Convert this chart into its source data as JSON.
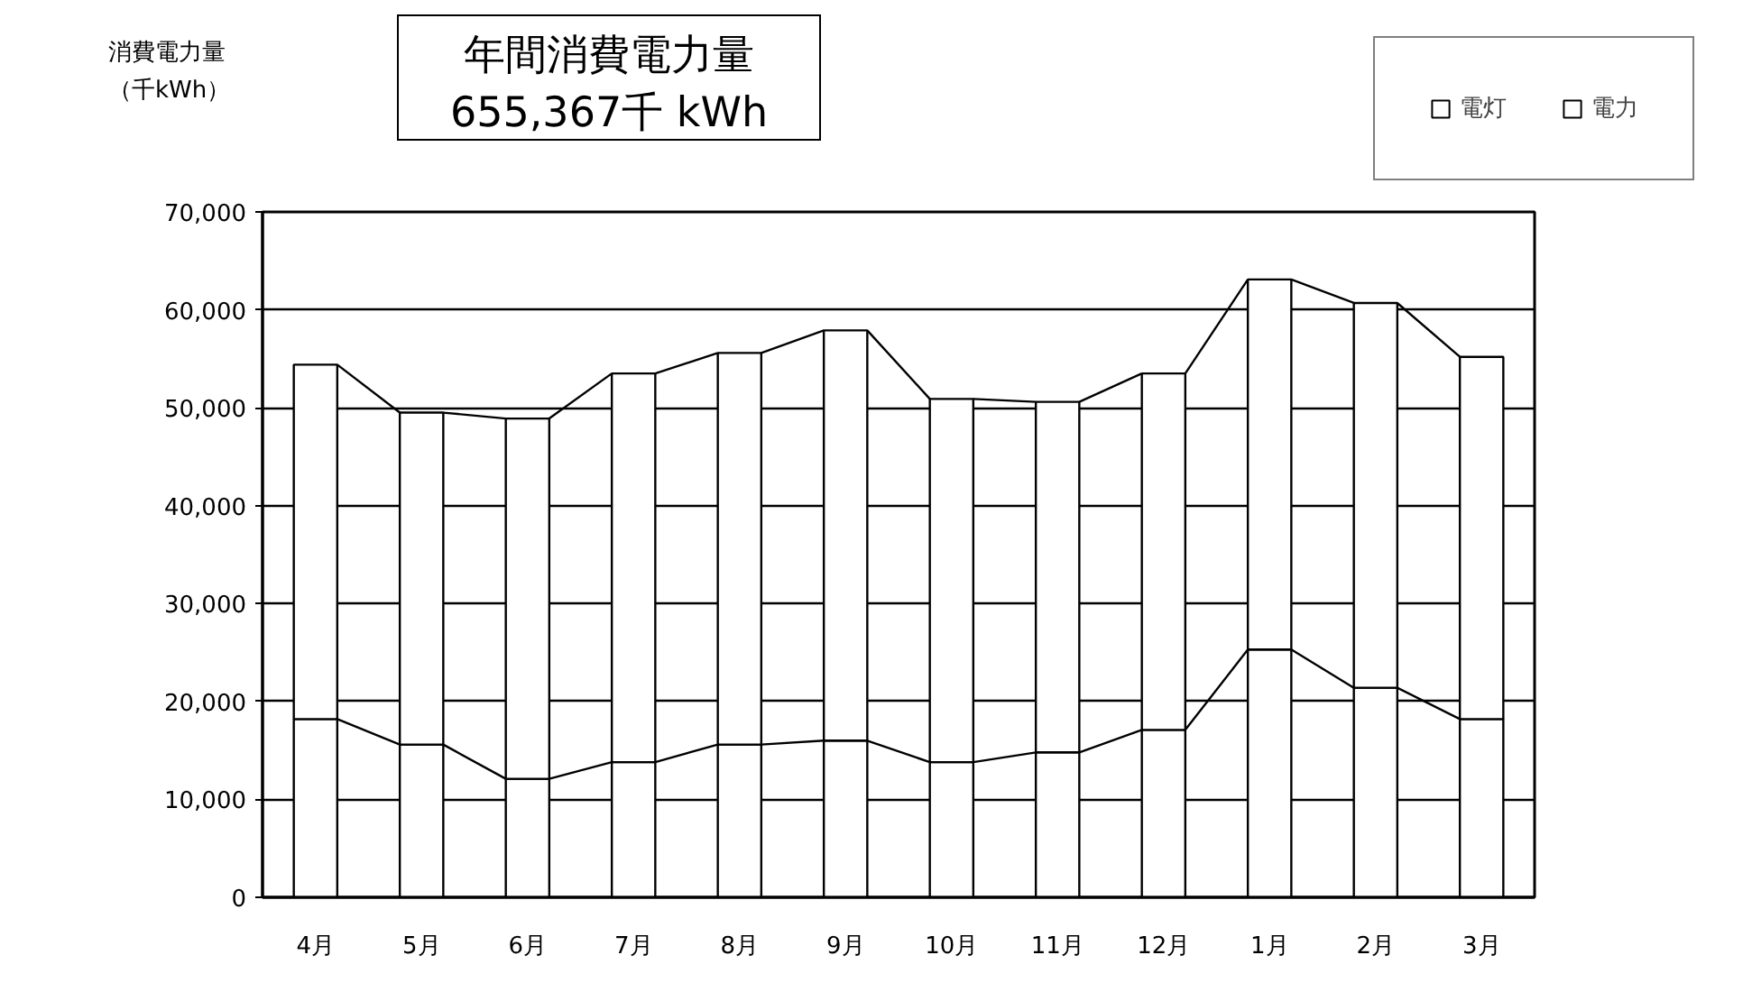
{
  "chart_data": {
    "type": "bar",
    "stacked": true,
    "title": "年間消費電力量",
    "subtitle": "655,367千 kWh",
    "annotations": [
      "消費電力量",
      "（千kWh）"
    ],
    "categories": [
      "4月",
      "5月",
      "6月",
      "7月",
      "8月",
      "9月",
      "10月",
      "11月",
      "12月",
      "1月",
      "2月",
      "3月"
    ],
    "series": [
      {
        "name": "電灯",
        "color": "#ffffff",
        "values": [
          18200,
          15600,
          12100,
          13800,
          15600,
          16000,
          13800,
          14800,
          17100,
          25300,
          21400,
          18200
        ]
      },
      {
        "name": "電力",
        "color": "#ffffff",
        "values": [
          36200,
          33900,
          36800,
          39700,
          40000,
          41900,
          37100,
          35800,
          36400,
          37800,
          39300,
          37000
        ]
      }
    ],
    "ylim": [
      0,
      70000
    ],
    "yticks": [
      0,
      {
        "value": 10000,
        "label": "10,000"
      },
      {
        "value": 20000,
        "label": "20,000"
      },
      {
        "value": 30000,
        "label": "30,000"
      },
      {
        "value": 40000,
        "label": "40,000"
      },
      {
        "value": 50000,
        "label": "50,000"
      },
      {
        "value": 60000,
        "label": "60,000"
      },
      {
        "value": 70000,
        "label": "70,000"
      }
    ],
    "grid": "y",
    "legend": "top right"
  }
}
